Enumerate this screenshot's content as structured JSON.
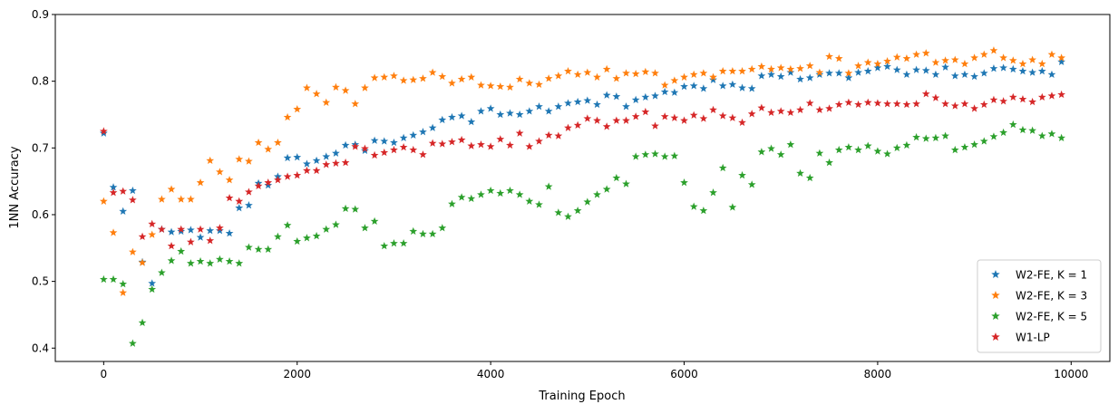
{
  "chart_data": {
    "type": "scatter",
    "title": "",
    "xlabel": "Training Epoch",
    "ylabel": "1NN Accuracy",
    "xlim": [
      -500,
      10400
    ],
    "ylim": [
      0.38,
      0.9
    ],
    "xticks": [
      0,
      2000,
      4000,
      6000,
      8000,
      10000
    ],
    "yticks": [
      0.4,
      0.5,
      0.6,
      0.7,
      0.8,
      0.9
    ],
    "grid": false,
    "legend_position": "lower-right",
    "marker": "star",
    "x": [
      0,
      100,
      200,
      300,
      400,
      500,
      600,
      700,
      800,
      900,
      1000,
      1100,
      1200,
      1300,
      1400,
      1500,
      1600,
      1700,
      1800,
      1900,
      2000,
      2100,
      2200,
      2300,
      2400,
      2500,
      2600,
      2700,
      2800,
      2900,
      3000,
      3100,
      3200,
      3300,
      3400,
      3500,
      3600,
      3700,
      3800,
      3900,
      4000,
      4100,
      4200,
      4300,
      4400,
      4500,
      4600,
      4700,
      4800,
      4900,
      5000,
      5100,
      5200,
      5300,
      5400,
      5500,
      5600,
      5700,
      5800,
      5900,
      6000,
      6100,
      6200,
      6300,
      6400,
      6500,
      6600,
      6700,
      6800,
      6900,
      7000,
      7100,
      7200,
      7300,
      7400,
      7500,
      7600,
      7700,
      7800,
      7900,
      8000,
      8100,
      8200,
      8300,
      8400,
      8500,
      8600,
      8700,
      8800,
      8900,
      9000,
      9100,
      9200,
      9300,
      9400,
      9500,
      9600,
      9700,
      9800,
      9900
    ],
    "series": [
      {
        "name": "W2-FE, K = 1",
        "color": "#1f77b4",
        "values": [
          0.722,
          0.641,
          0.605,
          0.636,
          0.529,
          0.497,
          0.578,
          0.574,
          0.575,
          0.577,
          0.566,
          0.576,
          0.576,
          0.572,
          0.61,
          0.614,
          0.647,
          0.644,
          0.657,
          0.685,
          0.686,
          0.676,
          0.681,
          0.687,
          0.692,
          0.704,
          0.705,
          0.696,
          0.711,
          0.71,
          0.708,
          0.715,
          0.719,
          0.724,
          0.73,
          0.742,
          0.746,
          0.748,
          0.739,
          0.755,
          0.759,
          0.75,
          0.752,
          0.75,
          0.755,
          0.762,
          0.755,
          0.762,
          0.767,
          0.769,
          0.771,
          0.765,
          0.779,
          0.777,
          0.762,
          0.772,
          0.776,
          0.778,
          0.784,
          0.783,
          0.792,
          0.793,
          0.789,
          0.802,
          0.793,
          0.795,
          0.79,
          0.789,
          0.808,
          0.81,
          0.807,
          0.813,
          0.803,
          0.805,
          0.81,
          0.812,
          0.812,
          0.805,
          0.813,
          0.815,
          0.82,
          0.822,
          0.817,
          0.81,
          0.817,
          0.816,
          0.81,
          0.821,
          0.808,
          0.81,
          0.807,
          0.812,
          0.819,
          0.82,
          0.818,
          0.815,
          0.813,
          0.815,
          0.81,
          0.829
        ]
      },
      {
        "name": "W2-FE, K = 3",
        "color": "#ff7f0e",
        "values": [
          0.62,
          0.573,
          0.483,
          0.544,
          0.528,
          0.57,
          0.623,
          0.638,
          0.623,
          0.623,
          0.648,
          0.681,
          0.664,
          0.652,
          0.683,
          0.68,
          0.708,
          0.698,
          0.708,
          0.746,
          0.758,
          0.79,
          0.781,
          0.768,
          0.791,
          0.786,
          0.766,
          0.79,
          0.805,
          0.806,
          0.808,
          0.801,
          0.802,
          0.804,
          0.813,
          0.807,
          0.797,
          0.803,
          0.806,
          0.794,
          0.793,
          0.792,
          0.791,
          0.803,
          0.797,
          0.795,
          0.804,
          0.808,
          0.815,
          0.81,
          0.813,
          0.806,
          0.818,
          0.804,
          0.812,
          0.811,
          0.814,
          0.812,
          0.794,
          0.801,
          0.806,
          0.81,
          0.812,
          0.806,
          0.815,
          0.815,
          0.815,
          0.818,
          0.822,
          0.818,
          0.82,
          0.818,
          0.819,
          0.823,
          0.813,
          0.837,
          0.834,
          0.812,
          0.823,
          0.828,
          0.826,
          0.83,
          0.836,
          0.834,
          0.84,
          0.842,
          0.828,
          0.831,
          0.832,
          0.826,
          0.835,
          0.84,
          0.846,
          0.835,
          0.831,
          0.826,
          0.832,
          0.826,
          0.84,
          0.835
        ]
      },
      {
        "name": "W2-FE, K = 5",
        "color": "#2ca02c",
        "values": [
          0.503,
          0.503,
          0.496,
          0.407,
          0.438,
          0.488,
          0.513,
          0.531,
          0.545,
          0.527,
          0.53,
          0.527,
          0.533,
          0.53,
          0.527,
          0.551,
          0.548,
          0.548,
          0.567,
          0.584,
          0.56,
          0.565,
          0.568,
          0.578,
          0.585,
          0.609,
          0.608,
          0.58,
          0.59,
          0.553,
          0.557,
          0.557,
          0.575,
          0.571,
          0.571,
          0.58,
          0.616,
          0.626,
          0.624,
          0.63,
          0.636,
          0.632,
          0.636,
          0.63,
          0.62,
          0.615,
          0.642,
          0.603,
          0.597,
          0.606,
          0.619,
          0.63,
          0.638,
          0.655,
          0.646,
          0.687,
          0.69,
          0.691,
          0.687,
          0.688,
          0.648,
          0.612,
          0.606,
          0.633,
          0.67,
          0.611,
          0.659,
          0.645,
          0.694,
          0.699,
          0.69,
          0.705,
          0.662,
          0.655,
          0.692,
          0.678,
          0.697,
          0.701,
          0.697,
          0.703,
          0.695,
          0.691,
          0.7,
          0.704,
          0.716,
          0.714,
          0.715,
          0.718,
          0.697,
          0.701,
          0.705,
          0.71,
          0.717,
          0.723,
          0.735,
          0.727,
          0.726,
          0.718,
          0.721,
          0.715
        ]
      },
      {
        "name": "W1-LP",
        "color": "#d62728",
        "values": [
          0.725,
          0.633,
          0.635,
          0.622,
          0.567,
          0.586,
          0.578,
          0.553,
          0.578,
          0.559,
          0.578,
          0.561,
          0.58,
          0.625,
          0.62,
          0.634,
          0.643,
          0.648,
          0.652,
          0.657,
          0.659,
          0.666,
          0.666,
          0.675,
          0.677,
          0.678,
          0.702,
          0.699,
          0.689,
          0.693,
          0.697,
          0.701,
          0.697,
          0.69,
          0.707,
          0.706,
          0.709,
          0.712,
          0.703,
          0.705,
          0.702,
          0.713,
          0.704,
          0.722,
          0.702,
          0.71,
          0.719,
          0.718,
          0.73,
          0.734,
          0.744,
          0.741,
          0.732,
          0.741,
          0.741,
          0.747,
          0.754,
          0.733,
          0.747,
          0.745,
          0.741,
          0.749,
          0.744,
          0.757,
          0.748,
          0.745,
          0.738,
          0.751,
          0.76,
          0.753,
          0.755,
          0.753,
          0.757,
          0.767,
          0.757,
          0.759,
          0.765,
          0.768,
          0.765,
          0.768,
          0.767,
          0.766,
          0.766,
          0.765,
          0.766,
          0.781,
          0.775,
          0.766,
          0.763,
          0.766,
          0.759,
          0.765,
          0.772,
          0.77,
          0.776,
          0.773,
          0.769,
          0.776,
          0.778,
          0.78
        ]
      }
    ]
  }
}
